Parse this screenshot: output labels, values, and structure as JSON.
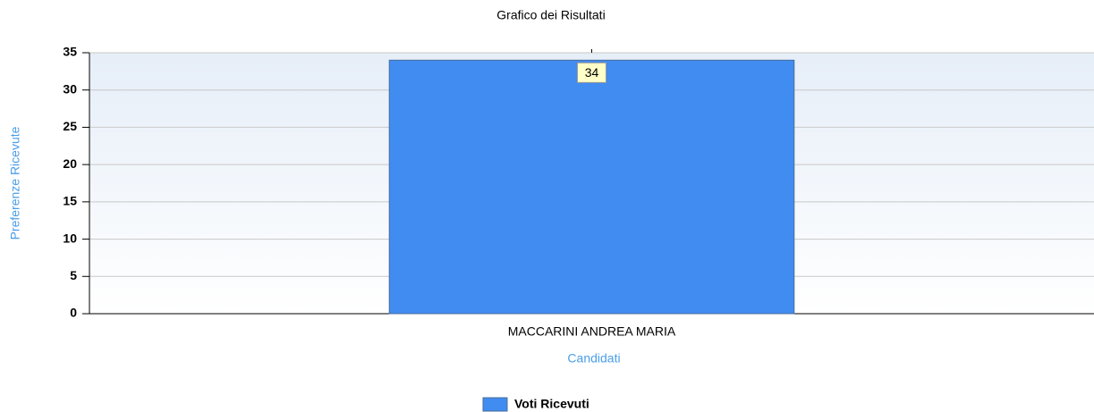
{
  "chart_data": {
    "type": "bar",
    "title": "Grafico dei Risultati",
    "x_label": "Candidati",
    "y_label": "Preferenze Ricevute",
    "categories": [
      "MACCARINI ANDREA MARIA"
    ],
    "series": [
      {
        "name": "Voti Ricevuti",
        "color": "#418cf0",
        "values": [
          34
        ]
      }
    ],
    "ylim": [
      0,
      35
    ],
    "yticks": [
      0,
      5,
      10,
      15,
      20,
      25,
      30,
      35
    ],
    "grid": true,
    "legend": "bottom"
  }
}
